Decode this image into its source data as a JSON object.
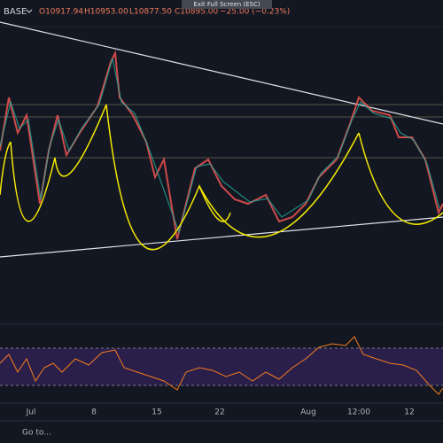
{
  "header": {
    "symbol": "BASE",
    "ohlc": [
      "O10917.94",
      "H10953.00",
      "L10877.50",
      "C10895.00"
    ],
    "change": "−25.00 (−0.23%)"
  },
  "tooltip": "Exit Full Screen (ESC)",
  "time_axis": [
    "Jul",
    "8",
    "15",
    "22",
    "Aug",
    "12:00",
    "12"
  ],
  "footer": {
    "goto": "Go to..."
  }
}
